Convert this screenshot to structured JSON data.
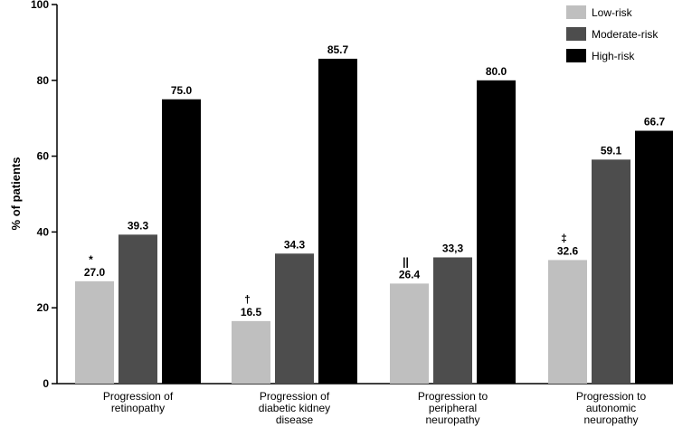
{
  "chart_data": {
    "type": "bar",
    "ylabel": "% of patients",
    "ylim": [
      0,
      100
    ],
    "yticks": [
      0,
      20,
      40,
      60,
      80,
      100
    ],
    "legend_position": "top-right",
    "categories": [
      [
        "Progression of",
        "retinopathy"
      ],
      [
        "Progression of",
        "diabetic kidney",
        "disease"
      ],
      [
        "Progression to",
        "peripheral",
        "neuropathy"
      ],
      [
        "Progression to",
        "autonomic",
        "neuropathy"
      ]
    ],
    "series": [
      {
        "name": "Low-risk",
        "color": "#bfbfbf",
        "values": [
          27.0,
          16.5,
          26.4,
          32.6
        ],
        "labels": [
          "27.0",
          "16.5",
          "26.4",
          "32.6"
        ],
        "markers": [
          "*",
          "†",
          "||",
          "‡"
        ]
      },
      {
        "name": "Moderate-risk",
        "color": "#4d4d4d",
        "values": [
          39.3,
          34.3,
          33.3,
          59.1
        ],
        "labels": [
          "39.3",
          "34.3",
          "33,3",
          "59.1"
        ]
      },
      {
        "name": "High-risk",
        "color": "#000000",
        "values": [
          75.0,
          85.7,
          80.0,
          66.7
        ],
        "labels": [
          "75.0",
          "85.7",
          "80.0",
          "66.7"
        ]
      }
    ]
  }
}
